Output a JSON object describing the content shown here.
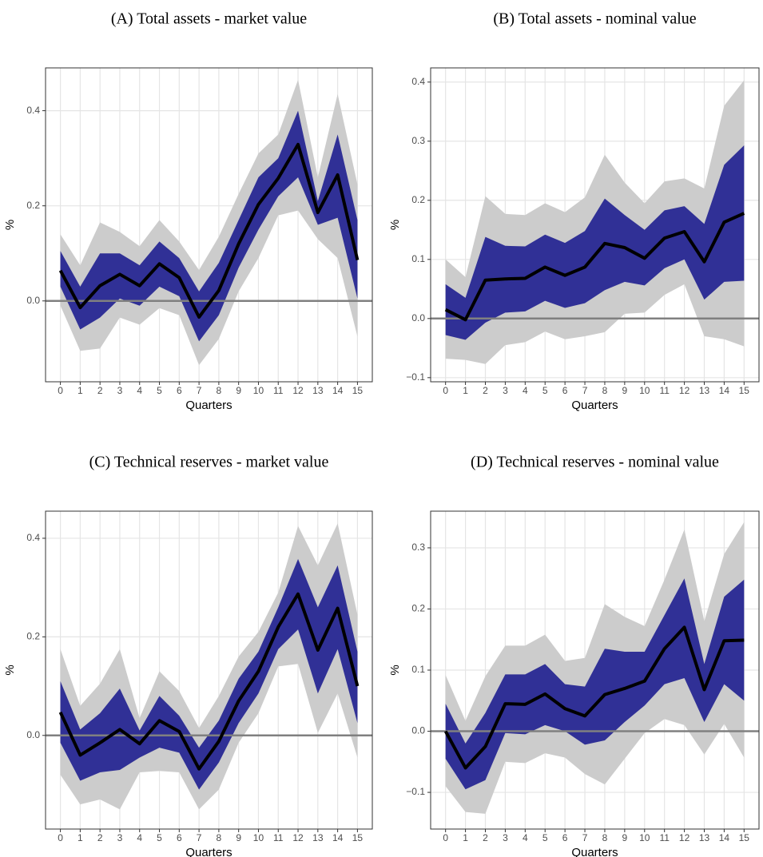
{
  "chart_data": [
    {
      "type": "line",
      "title": "(A) Total assets - market value",
      "xlabel": "Quarters",
      "ylabel": "%",
      "x": [
        0,
        1,
        2,
        3,
        4,
        5,
        6,
        7,
        8,
        9,
        10,
        11,
        12,
        13,
        14,
        15
      ],
      "xlim": [
        -0.75,
        15.75
      ],
      "xticks": [
        0,
        1,
        2,
        3,
        4,
        5,
        6,
        7,
        8,
        9,
        10,
        11,
        12,
        13,
        14,
        15
      ],
      "ylim": [
        -0.17,
        0.49
      ],
      "yticks": [
        {
          "value": 0,
          "label": "0.0"
        },
        0.2,
        0.4
      ],
      "grid": true,
      "hline": 0,
      "bands": [
        {
          "color": "#cccccc",
          "upper": [
            0.14,
            0.075,
            0.165,
            0.145,
            0.115,
            0.17,
            0.125,
            0.065,
            0.135,
            0.225,
            0.31,
            0.35,
            0.465,
            0.26,
            0.435,
            0.245
          ],
          "lower": [
            -0.01,
            -0.105,
            -0.1,
            -0.035,
            -0.05,
            -0.015,
            -0.03,
            -0.135,
            -0.08,
            0.02,
            0.09,
            0.18,
            0.19,
            0.13,
            0.09,
            -0.075
          ]
        },
        {
          "color": "#303096",
          "upper": [
            0.105,
            0.03,
            0.1,
            0.1,
            0.075,
            0.125,
            0.09,
            0.02,
            0.08,
            0.17,
            0.26,
            0.3,
            0.4,
            0.21,
            0.35,
            0.17
          ],
          "lower": [
            0.03,
            -0.06,
            -0.035,
            0.005,
            -0.01,
            0.03,
            0.01,
            -0.085,
            -0.03,
            0.07,
            0.15,
            0.22,
            0.26,
            0.16,
            0.175,
            0.005
          ]
        }
      ],
      "series": [
        {
          "color": "#000000",
          "values": [
            0.064,
            -0.014,
            0.032,
            0.056,
            0.032,
            0.078,
            0.049,
            -0.034,
            0.022,
            0.12,
            0.203,
            0.258,
            0.329,
            0.186,
            0.265,
            0.086
          ]
        }
      ]
    },
    {
      "type": "line",
      "title": "(B) Total assets - nominal value",
      "xlabel": "Quarters",
      "ylabel": "%",
      "x": [
        0,
        1,
        2,
        3,
        4,
        5,
        6,
        7,
        8,
        9,
        10,
        11,
        12,
        13,
        14,
        15
      ],
      "xlim": [
        -0.75,
        15.75
      ],
      "xticks": [
        0,
        1,
        2,
        3,
        4,
        5,
        6,
        7,
        8,
        9,
        10,
        11,
        12,
        13,
        14,
        15
      ],
      "ylim": [
        -0.107,
        0.424
      ],
      "yticks": [
        {
          "value": -0.1,
          "label": "−0.1"
        },
        {
          "value": 0,
          "label": "0.0"
        },
        0.1,
        0.2,
        0.3,
        0.4
      ],
      "grid": true,
      "hline": 0,
      "bands": [
        {
          "color": "#cccccc",
          "upper": [
            0.1,
            0.07,
            0.207,
            0.177,
            0.175,
            0.195,
            0.18,
            0.205,
            0.277,
            0.23,
            0.195,
            0.232,
            0.237,
            0.22,
            0.36,
            0.403
          ],
          "lower": [
            -0.068,
            -0.07,
            -0.077,
            -0.045,
            -0.04,
            -0.022,
            -0.035,
            -0.03,
            -0.023,
            0.008,
            0.01,
            0.04,
            0.058,
            -0.03,
            -0.035,
            -0.047
          ]
        },
        {
          "color": "#303096",
          "upper": [
            0.058,
            0.035,
            0.138,
            0.123,
            0.122,
            0.142,
            0.128,
            0.148,
            0.203,
            0.175,
            0.15,
            0.183,
            0.19,
            0.16,
            0.26,
            0.293
          ],
          "lower": [
            -0.028,
            -0.036,
            -0.007,
            0.01,
            0.012,
            0.03,
            0.018,
            0.026,
            0.048,
            0.062,
            0.056,
            0.085,
            0.1,
            0.032,
            0.062,
            0.064
          ]
        }
      ],
      "series": [
        {
          "color": "#000000",
          "values": [
            0.015,
            -0.002,
            0.065,
            0.067,
            0.068,
            0.087,
            0.073,
            0.087,
            0.127,
            0.12,
            0.102,
            0.136,
            0.147,
            0.096,
            0.163,
            0.178
          ]
        }
      ]
    },
    {
      "type": "line",
      "title": "(C) Technical reserves - market value",
      "xlabel": "Quarters",
      "ylabel": "%",
      "x": [
        0,
        1,
        2,
        3,
        4,
        5,
        6,
        7,
        8,
        9,
        10,
        11,
        12,
        13,
        14,
        15
      ],
      "xlim": [
        -0.75,
        15.75
      ],
      "xticks": [
        0,
        1,
        2,
        3,
        4,
        5,
        6,
        7,
        8,
        9,
        10,
        11,
        12,
        13,
        14,
        15
      ],
      "ylim": [
        -0.19,
        0.455
      ],
      "yticks": [
        {
          "value": 0,
          "label": "0.0"
        },
        0.2,
        0.4
      ],
      "grid": true,
      "hline": 0,
      "bands": [
        {
          "color": "#cccccc",
          "upper": [
            0.175,
            0.06,
            0.105,
            0.175,
            0.035,
            0.13,
            0.09,
            0.015,
            0.08,
            0.16,
            0.21,
            0.29,
            0.425,
            0.345,
            0.43,
            0.245
          ],
          "lower": [
            -0.08,
            -0.14,
            -0.13,
            -0.15,
            -0.075,
            -0.072,
            -0.075,
            -0.15,
            -0.11,
            -0.015,
            0.045,
            0.14,
            0.145,
            0.005,
            0.085,
            -0.045
          ]
        },
        {
          "color": "#303096",
          "upper": [
            0.11,
            0.012,
            0.045,
            0.095,
            0.01,
            0.08,
            0.04,
            -0.025,
            0.03,
            0.115,
            0.17,
            0.26,
            0.358,
            0.26,
            0.345,
            0.17
          ],
          "lower": [
            -0.015,
            -0.092,
            -0.075,
            -0.07,
            -0.045,
            -0.025,
            -0.035,
            -0.11,
            -0.055,
            0.025,
            0.085,
            0.175,
            0.215,
            0.085,
            0.175,
            0.025
          ]
        }
      ],
      "series": [
        {
          "color": "#000000",
          "values": [
            0.047,
            -0.04,
            -0.015,
            0.012,
            -0.017,
            0.03,
            0.008,
            -0.068,
            -0.012,
            0.07,
            0.13,
            0.22,
            0.287,
            0.173,
            0.258,
            0.1
          ]
        }
      ]
    },
    {
      "type": "line",
      "title": "(D) Technical reserves - nominal value",
      "xlabel": "Quarters",
      "ylabel": "%",
      "x": [
        0,
        1,
        2,
        3,
        4,
        5,
        6,
        7,
        8,
        9,
        10,
        11,
        12,
        13,
        14,
        15
      ],
      "xlim": [
        -0.75,
        15.75
      ],
      "xticks": [
        0,
        1,
        2,
        3,
        4,
        5,
        6,
        7,
        8,
        9,
        10,
        11,
        12,
        13,
        14,
        15
      ],
      "ylim": [
        -0.16,
        0.36
      ],
      "yticks": [
        {
          "value": -0.1,
          "label": "−0.1"
        },
        {
          "value": 0,
          "label": "0.0"
        },
        0.1,
        0.2,
        0.3
      ],
      "grid": true,
      "hline": 0,
      "bands": [
        {
          "color": "#cccccc",
          "upper": [
            0.092,
            0.017,
            0.09,
            0.14,
            0.14,
            0.158,
            0.115,
            0.12,
            0.208,
            0.187,
            0.172,
            0.248,
            0.33,
            0.18,
            0.29,
            0.342
          ],
          "lower": [
            -0.09,
            -0.132,
            -0.135,
            -0.05,
            -0.052,
            -0.036,
            -0.043,
            -0.07,
            -0.087,
            -0.045,
            -0.003,
            0.02,
            0.01,
            -0.038,
            0.012,
            -0.043
          ]
        },
        {
          "color": "#303096",
          "upper": [
            0.045,
            -0.02,
            0.03,
            0.093,
            0.093,
            0.11,
            0.077,
            0.073,
            0.135,
            0.13,
            0.13,
            0.19,
            0.25,
            0.11,
            0.22,
            0.248
          ],
          "lower": [
            -0.045,
            -0.095,
            -0.08,
            -0.003,
            -0.005,
            0.01,
            0,
            -0.022,
            -0.015,
            0.015,
            0.042,
            0.077,
            0.087,
            0.015,
            0.077,
            0.05
          ]
        }
      ],
      "series": [
        {
          "color": "#000000",
          "values": [
            0,
            -0.06,
            -0.025,
            0.045,
            0.044,
            0.061,
            0.037,
            0.025,
            0.06,
            0.07,
            0.082,
            0.135,
            0.17,
            0.068,
            0.148,
            0.149
          ]
        }
      ]
    }
  ]
}
